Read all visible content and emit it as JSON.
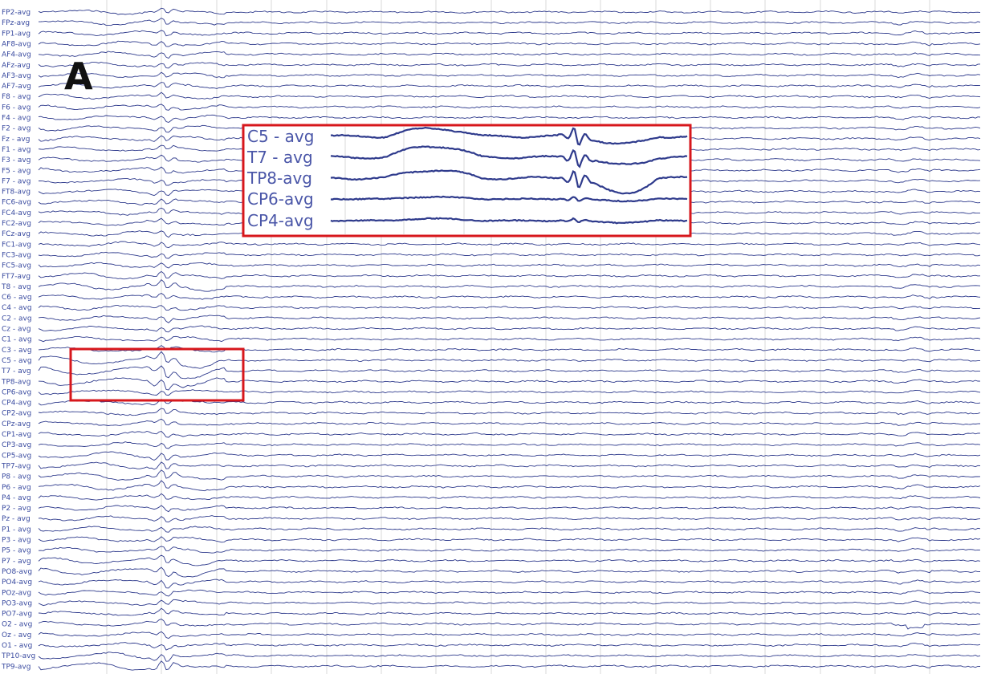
{
  "panel_label": "A",
  "chart_data": {
    "type": "line",
    "title": "",
    "xlabel": "",
    "ylabel": "",
    "channels": [
      "FP2-avg",
      "FPz-avg",
      "FP1-avg",
      "AF8-avg",
      "AF4-avg",
      "AFz-avg",
      "AF3-avg",
      "AF7-avg",
      "F8 - avg",
      "F6 - avg",
      "F4 - avg",
      "F2 - avg",
      "Fz - avg",
      "F1 - avg",
      "F3 - avg",
      "F5 - avg",
      "F7 - avg",
      "FT8-avg",
      "FC6-avg",
      "FC4-avg",
      "FC2-avg",
      "FCz-avg",
      "FC1-avg",
      "FC3-avg",
      "FC5-avg",
      "FT7-avg",
      "T8 - avg",
      "C6 - avg",
      "C4 - avg",
      "C2 - avg",
      "Cz - avg",
      "C1 - avg",
      "C3 - avg",
      "C5 - avg",
      "T7 - avg",
      "TP8-avg",
      "CP6-avg",
      "CP4-avg",
      "CP2-avg",
      "CPz-avg",
      "CP1-avg",
      "CP3-avg",
      "CP5-avg",
      "TP7-avg",
      "P8 - avg",
      "P6 - avg",
      "P4 - avg",
      "P2 - avg",
      "Pz - avg",
      "P1 - avg",
      "P3 - avg",
      "P5 - avg",
      "P7 - avg",
      "PO8-avg",
      "PO4-avg",
      "POz-avg",
      "PO3-avg",
      "PO7-avg",
      "O2 - avg",
      "Oz - avg",
      "O1 - avg",
      "TP10-avg",
      "TP9-avg"
    ],
    "inset": {
      "channels": [
        "C5 - avg",
        "T7 - avg",
        "TP8-avg",
        "CP6-avg",
        "CP4-avg"
      ]
    },
    "highlight_channels": [
      "C5 - avg",
      "T7 - avg",
      "TP8-avg"
    ],
    "annotation_color": "#d7171c",
    "trace_color": "#2e3a8c"
  }
}
